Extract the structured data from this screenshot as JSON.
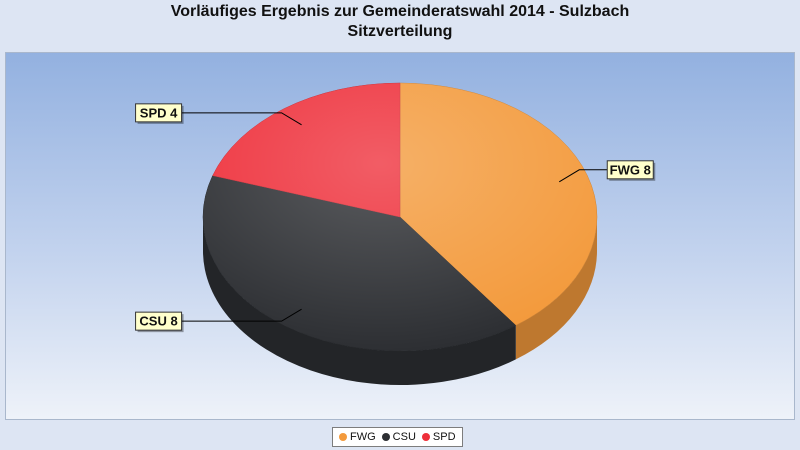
{
  "chart_data": {
    "type": "pie",
    "title": "Vorläufiges Ergebnis zur Gemeinderatswahl 2014 - Sulzbach",
    "subtitle": "Sitzverteilung",
    "categories": [
      "FWG",
      "CSU",
      "SPD"
    ],
    "values": [
      8,
      8,
      4
    ],
    "data_labels": [
      "FWG 8",
      "CSU 8",
      "SPD 4"
    ],
    "colors": [
      "#f39a3c",
      "#2d2f33",
      "#ee2f3a"
    ],
    "legend_position": "bottom"
  }
}
